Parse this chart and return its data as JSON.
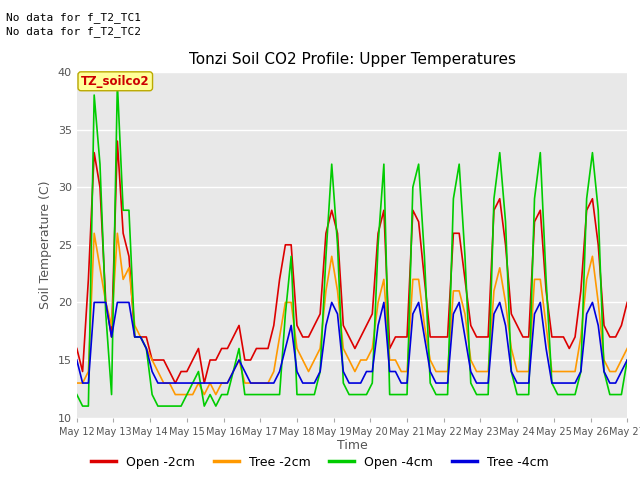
{
  "title": "Tonzi Soil CO2 Profile: Upper Temperatures",
  "xlabel": "Time",
  "ylabel": "Soil Temperature (C)",
  "ylim": [
    10,
    40
  ],
  "yticks": [
    10,
    15,
    20,
    25,
    30,
    35,
    40
  ],
  "bg_color": "#e8e8e8",
  "annotations_top": [
    "No data for f_T2_TC1",
    "No data for f_T2_TC2"
  ],
  "box_label": "TZ_soilco2",
  "legend_entries": [
    "Open -2cm",
    "Tree -2cm",
    "Open -4cm",
    "Tree -4cm"
  ],
  "colors": [
    "#dd0000",
    "#ff9900",
    "#00cc00",
    "#0000dd"
  ],
  "line_width": 1.2,
  "xtick_labels": [
    "May 12",
    "May 13",
    "May 14",
    "May 15",
    "May 16",
    "May 17",
    "May 18",
    "May 19",
    "May 20",
    "May 21",
    "May 22",
    "May 23",
    "May 24",
    "May 25",
    "May 26",
    "May 27"
  ],
  "open_2cm": [
    16,
    14,
    22,
    33,
    30,
    20,
    17,
    34,
    26,
    24,
    17,
    17,
    17,
    15,
    15,
    15,
    14,
    13,
    14,
    14,
    15,
    16,
    13,
    15,
    15,
    16,
    16,
    17,
    18,
    15,
    15,
    16,
    16,
    16,
    18,
    22,
    25,
    25,
    18,
    17,
    17,
    18,
    19,
    26,
    28,
    26,
    18,
    17,
    16,
    17,
    18,
    19,
    26,
    28,
    16,
    17,
    17,
    17,
    28,
    27,
    22,
    17,
    17,
    17,
    17,
    26,
    26,
    22,
    18,
    17,
    17,
    17,
    28,
    29,
    25,
    19,
    18,
    17,
    17,
    27,
    28,
    21,
    17,
    17,
    17,
    16,
    17,
    21,
    28,
    29,
    25,
    18,
    17,
    17,
    18,
    20
  ],
  "tree_2cm": [
    13,
    13,
    14,
    26,
    23,
    20,
    18,
    26,
    22,
    23,
    18,
    17,
    16,
    15,
    14,
    13,
    13,
    12,
    12,
    12,
    12,
    13,
    12,
    13,
    12,
    13,
    13,
    14,
    15,
    13,
    13,
    13,
    13,
    13,
    14,
    17,
    20,
    20,
    16,
    15,
    14,
    15,
    16,
    21,
    24,
    21,
    16,
    15,
    14,
    15,
    15,
    16,
    20,
    22,
    15,
    15,
    14,
    14,
    22,
    22,
    18,
    15,
    14,
    14,
    14,
    21,
    21,
    19,
    15,
    14,
    14,
    14,
    21,
    23,
    20,
    16,
    14,
    14,
    14,
    22,
    22,
    18,
    14,
    14,
    14,
    14,
    14,
    17,
    22,
    24,
    20,
    15,
    14,
    14,
    15,
    16
  ],
  "open_4cm": [
    12,
    11,
    11,
    38,
    32,
    19,
    12,
    39,
    28,
    28,
    17,
    17,
    16,
    12,
    11,
    11,
    11,
    11,
    11,
    12,
    13,
    14,
    11,
    12,
    11,
    12,
    12,
    14,
    16,
    12,
    12,
    12,
    12,
    12,
    12,
    12,
    19,
    24,
    12,
    12,
    12,
    12,
    14,
    24,
    32,
    25,
    13,
    12,
    12,
    12,
    12,
    13,
    25,
    32,
    12,
    12,
    12,
    12,
    30,
    32,
    24,
    13,
    12,
    12,
    12,
    29,
    32,
    24,
    13,
    12,
    12,
    12,
    29,
    33,
    27,
    14,
    12,
    12,
    12,
    29,
    33,
    22,
    13,
    12,
    12,
    12,
    12,
    14,
    29,
    33,
    28,
    14,
    12,
    12,
    12,
    15
  ],
  "tree_4cm": [
    15,
    13,
    13,
    20,
    20,
    20,
    17,
    20,
    20,
    20,
    17,
    17,
    16,
    14,
    13,
    13,
    13,
    13,
    13,
    13,
    13,
    13,
    13,
    13,
    13,
    13,
    13,
    14,
    15,
    14,
    13,
    13,
    13,
    13,
    13,
    14,
    16,
    18,
    14,
    13,
    13,
    13,
    14,
    18,
    20,
    19,
    14,
    13,
    13,
    13,
    14,
    14,
    18,
    20,
    14,
    14,
    13,
    13,
    19,
    20,
    17,
    14,
    13,
    13,
    13,
    19,
    20,
    17,
    14,
    13,
    13,
    13,
    19,
    20,
    18,
    14,
    13,
    13,
    13,
    19,
    20,
    16,
    13,
    13,
    13,
    13,
    13,
    14,
    19,
    20,
    18,
    14,
    13,
    13,
    14,
    15
  ]
}
